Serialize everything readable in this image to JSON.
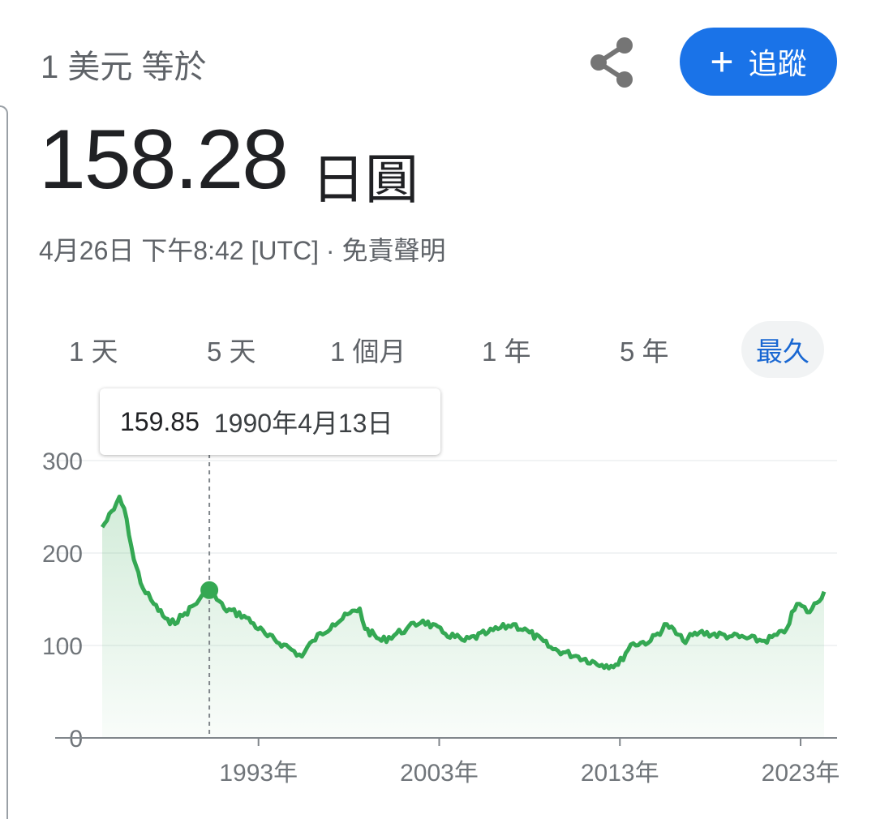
{
  "header": {
    "subtitle": "1 美元 等於",
    "share_icon": "share-icon",
    "follow_label": "追蹤",
    "follow_icon": "plus-icon"
  },
  "quote": {
    "price": "158.28",
    "currency": "日圓",
    "timestamp": "4月26日 下午8:42 [UTC] · 免責聲明"
  },
  "tabs": [
    {
      "label": "1 天"
    },
    {
      "label": "5 天"
    },
    {
      "label": "1 個月"
    },
    {
      "label": "1 年"
    },
    {
      "label": "5 年"
    },
    {
      "label": "最久",
      "active": true
    }
  ],
  "tooltip": {
    "value": "159.85",
    "date": "1990年4月13日"
  },
  "colors": {
    "line": "#34a853",
    "accent": "#1a73e8"
  },
  "chart_data": {
    "type": "area",
    "ylim": [
      0,
      300
    ],
    "yticks": [
      "0",
      "100",
      "200",
      "300"
    ],
    "ytick_values": [
      0,
      100,
      200,
      300
    ],
    "xticks": [
      "1993年",
      "2003年",
      "2013年",
      "2023年"
    ],
    "xtick_values": [
      1993,
      2003,
      2013,
      2023
    ],
    "xlim": [
      1984.35,
      2024.3
    ],
    "grid": true,
    "highlight": {
      "x": 1990.28,
      "y": 159.85
    },
    "x": [
      1984.35,
      1985.0,
      1985.3,
      1985.7,
      1986.1,
      1986.6,
      1987.2,
      1988.1,
      1988.8,
      1989.7,
      1990.28,
      1991.1,
      1992.2,
      1993.5,
      1994.4,
      1995.4,
      1996.0,
      1997.1,
      1998.6,
      1998.9,
      1999.8,
      2001.2,
      2002.1,
      2003.2,
      2004.4,
      2005.7,
      2007.1,
      2008.0,
      2009.3,
      2010.7,
      2012.0,
      2012.9,
      2013.6,
      2014.7,
      2015.6,
      2016.5,
      2017.4,
      2019.2,
      2021.0,
      2022.1,
      2022.8,
      2023.5,
      2024.3
    ],
    "y": [
      228,
      247,
      261,
      237,
      193,
      162,
      145,
      123,
      132,
      149,
      159.85,
      140,
      132,
      110,
      101,
      88,
      105,
      123,
      140,
      118,
      105,
      118,
      127,
      114,
      105,
      114,
      123,
      114,
      96,
      88,
      79,
      79,
      101,
      105,
      123,
      105,
      114,
      110,
      105,
      114,
      145,
      136,
      158.28
    ]
  }
}
